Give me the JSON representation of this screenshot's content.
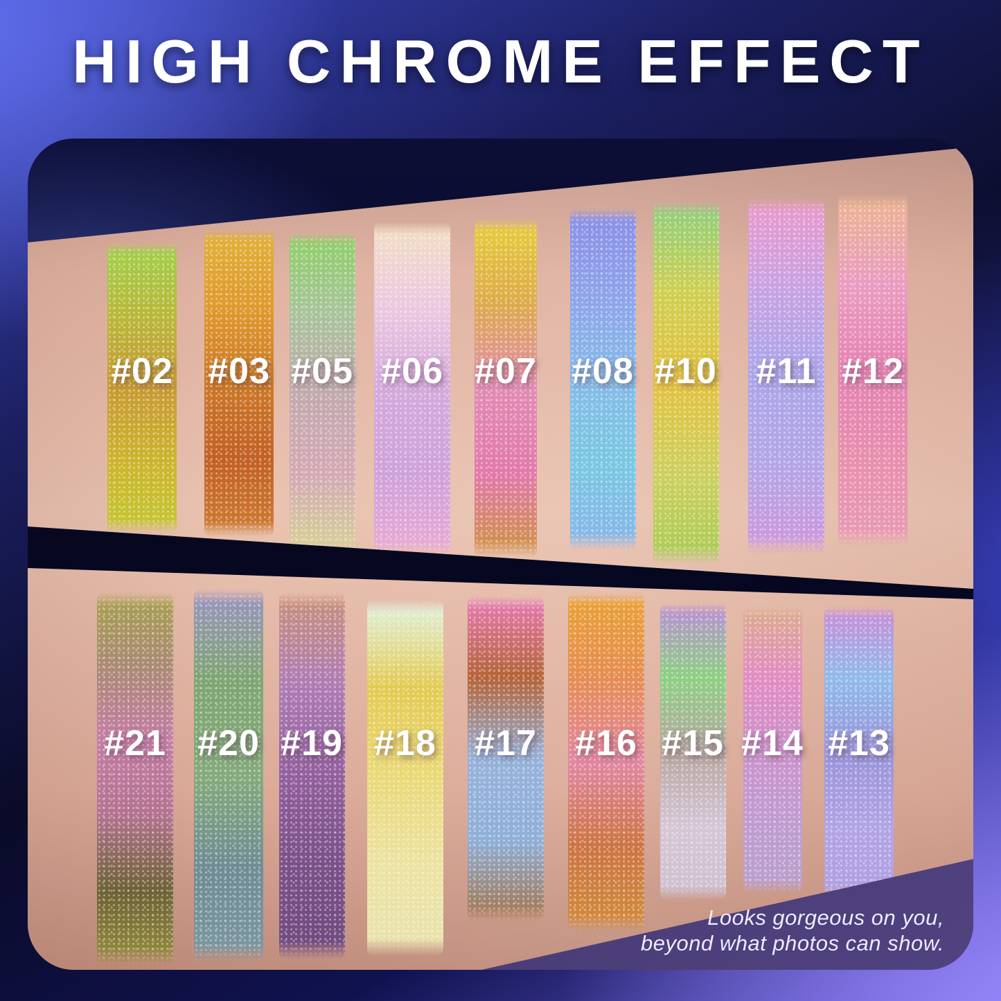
{
  "title": "HIGH CHROME EFFECT",
  "tagline": {
    "line1": "Looks gorgeous on you,",
    "line2": "beyond what photos can show."
  },
  "palette": {
    "photo_navy": "#0c0e36",
    "gap_navy": "#05051d",
    "purple_panel": "#473a72",
    "skin_mid": "#e3b6a5",
    "text_white": "#ffffff",
    "bg_blue_top_left": "#4a57d6",
    "bg_navy": "#0a0b28",
    "bg_periwinkle_bottom_right": "#8b7cf0"
  },
  "top_arm": {
    "swatches": [
      {
        "label": "#02",
        "colors": [
          "#9fd24b",
          "#b8b83a",
          "#c89a33",
          "#cdb42e",
          "#c3c832"
        ]
      },
      {
        "label": "#03",
        "colors": [
          "#e0b33a",
          "#e09a2e",
          "#cc7a28",
          "#c36024",
          "#cf7d33"
        ]
      },
      {
        "label": "#05",
        "colors": [
          "#8ed066",
          "#a8c49a",
          "#c2aaae",
          "#d4a9b4",
          "#d6d494"
        ]
      },
      {
        "label": "#06",
        "colors": [
          "#f2dfc2",
          "#ecc9e0",
          "#d5aadc",
          "#cfa2da",
          "#eaaad4"
        ]
      },
      {
        "label": "#07",
        "colors": [
          "#e7ce3a",
          "#ddab4a",
          "#e28cb4",
          "#e279ac",
          "#cf9340"
        ]
      },
      {
        "label": "#08",
        "colors": [
          "#8a8fe8",
          "#8fa3ea",
          "#86bce8",
          "#79c8e2",
          "#8ab4ea"
        ]
      },
      {
        "label": "#10",
        "colors": [
          "#8ccf7e",
          "#cfcf52",
          "#e3c23f",
          "#cdd05e",
          "#a8cc55"
        ]
      },
      {
        "label": "#11",
        "colors": [
          "#eb99cc",
          "#c9a2e2",
          "#aba6ea",
          "#b4a6e6",
          "#cf97dc"
        ]
      },
      {
        "label": "#12",
        "colors": [
          "#ecb58e",
          "#ea9dc0",
          "#e583b4",
          "#e88fae",
          "#e79cb4"
        ]
      }
    ]
  },
  "bottom_arm": {
    "swatches": [
      {
        "label": "#21",
        "colors": [
          "#a8a14e",
          "#ab8a74",
          "#c57da6",
          "#b2728e",
          "#6d6234",
          "#9a9140"
        ]
      },
      {
        "label": "#20",
        "colors": [
          "#9b93c4",
          "#7fa671",
          "#85aa7c",
          "#6f8c94",
          "#7e98a2"
        ]
      },
      {
        "label": "#19",
        "colors": [
          "#c99379",
          "#b07cb4",
          "#92609e",
          "#7a5088",
          "#6f4a7e"
        ]
      },
      {
        "label": "#18",
        "colors": [
          "#dff2e4",
          "#e3cb52",
          "#ead978",
          "#ece2a2",
          "#e8e3ae"
        ]
      },
      {
        "label": "#17",
        "colors": [
          "#ea7cba",
          "#b56438",
          "#97b2da",
          "#8fb0d8",
          "#a5734a"
        ]
      },
      {
        "label": "#16",
        "colors": [
          "#eaa333",
          "#e58d52",
          "#e287a2",
          "#cc7544",
          "#d28d3b"
        ]
      },
      {
        "label": "#15",
        "colors": [
          "#bb8cd8",
          "#8ed083",
          "#b7a7a0",
          "#d6c6d6",
          "#cfc0d0"
        ]
      },
      {
        "label": "#14",
        "colors": [
          "#dcae8c",
          "#e28cc2",
          "#cc93cc",
          "#c09cd0",
          "#b9a0cc"
        ]
      },
      {
        "label": "#13",
        "colors": [
          "#cb8cd8",
          "#90bbea",
          "#9a94da",
          "#b2a4e4",
          "#b0a0e0"
        ]
      }
    ]
  }
}
